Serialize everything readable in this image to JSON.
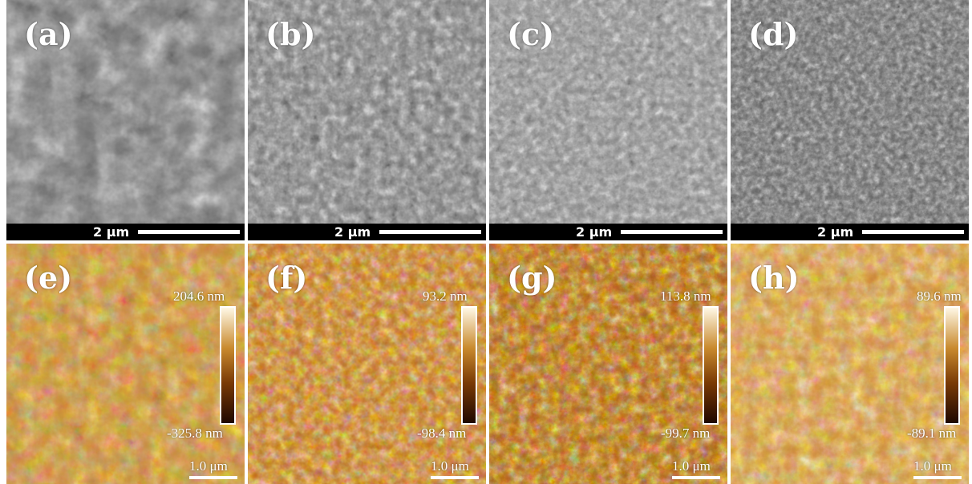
{
  "sem_panels": [
    {
      "label": "(a)",
      "scale": "2 μm"
    },
    {
      "label": "(b)",
      "scale": "2 μm"
    },
    {
      "label": "(c)",
      "scale": "2 μm"
    },
    {
      "label": "(d)",
      "scale": "2 μm"
    }
  ],
  "afm_panels": [
    {
      "label": "(e)",
      "max": "204.6 nm",
      "min": "-325.8 nm",
      "scale": "1.0 μm"
    },
    {
      "label": "(f)",
      "max": "93.2 nm",
      "min": "-98.4 nm",
      "scale": "1.0 μm"
    },
    {
      "label": "(g)",
      "max": "113.8 nm",
      "min": "-99.7 nm",
      "scale": "1.0 μm"
    },
    {
      "label": "(h)",
      "max": "89.6 nm",
      "min": "-89.1 nm",
      "scale": "1.0 μm"
    }
  ],
  "colors": {
    "sem_base": "#6e6e6e",
    "afm_dark": "#2a0f00",
    "afm_mid": "#b5651d",
    "afm_light": "#f3e0b0"
  }
}
